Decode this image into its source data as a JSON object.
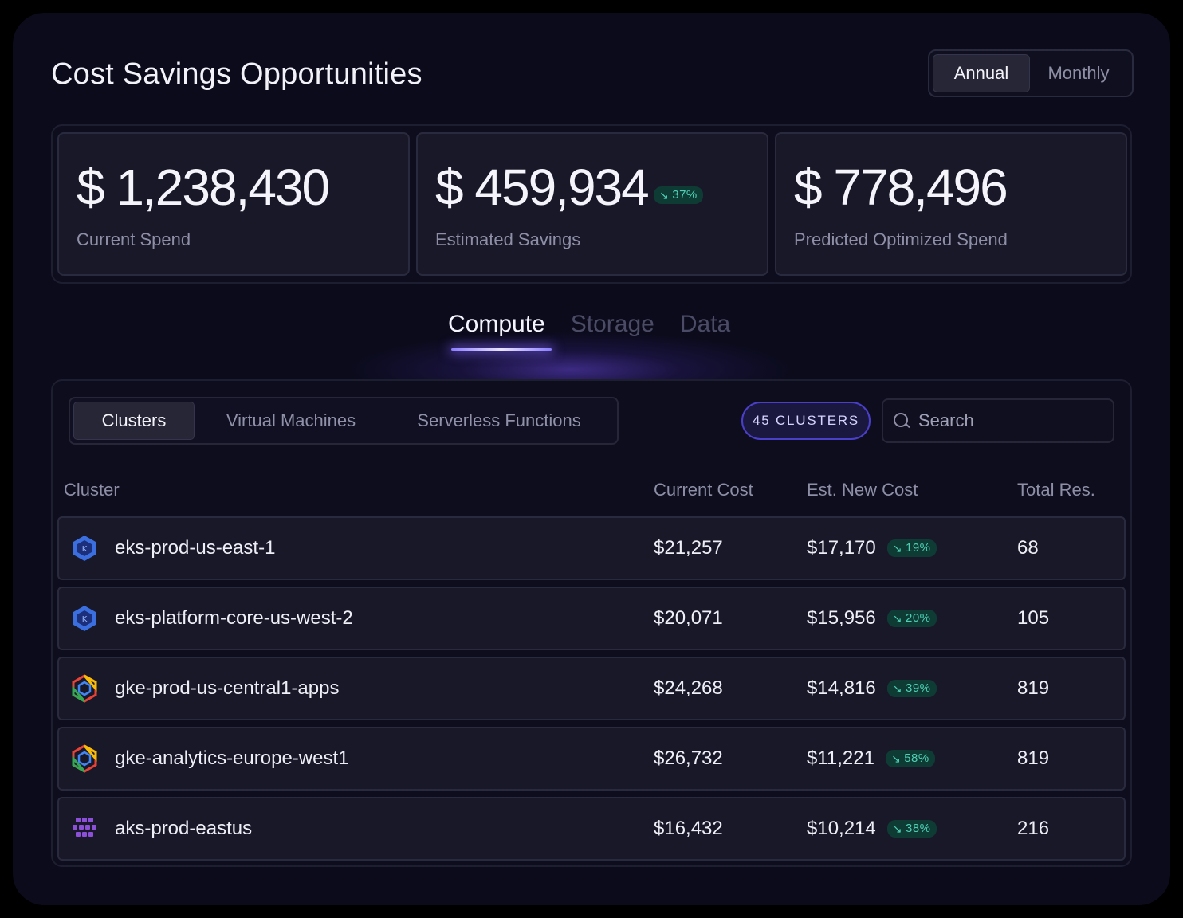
{
  "title": "Cost Savings Opportunities",
  "period_toggle": {
    "options": [
      "Annual",
      "Monthly"
    ],
    "selected": "Annual"
  },
  "stats": [
    {
      "value": "$ 1,238,430",
      "label": "Current Spend"
    },
    {
      "value": "$ 459,934",
      "label": "Estimated Savings",
      "badge": "37%"
    },
    {
      "value": "$ 778,496",
      "label": "Predicted Optimized Spend"
    }
  ],
  "category_tabs": [
    "Compute",
    "Storage",
    "Data"
  ],
  "category_selected": "Compute",
  "resource_tabs": [
    "Clusters",
    "Virtual Machines",
    "Serverless Functions"
  ],
  "resource_selected": "Clusters",
  "count_label": "45 CLUSTERS",
  "search": {
    "placeholder": "Search",
    "value": ""
  },
  "columns": {
    "cluster": "Cluster",
    "current_cost": "Current Cost",
    "est_new_cost": "Est. New Cost",
    "total_res": "Total Res."
  },
  "rows": [
    {
      "icon": "eks-icon",
      "name": "eks-prod-us-east-1",
      "current_cost": "$21,257",
      "est_new_cost": "$17,170",
      "badge": "19%",
      "total_res": "68"
    },
    {
      "icon": "eks-icon",
      "name": "eks-platform-core-us-west-2",
      "current_cost": "$20,071",
      "est_new_cost": "$15,956",
      "badge": "20%",
      "total_res": "105"
    },
    {
      "icon": "gke-icon",
      "name": "gke-prod-us-central1-apps",
      "current_cost": "$24,268",
      "est_new_cost": "$14,816",
      "badge": "39%",
      "total_res": "819"
    },
    {
      "icon": "gke-icon",
      "name": "gke-analytics-europe-west1",
      "current_cost": "$26,732",
      "est_new_cost": "$11,221",
      "badge": "58%",
      "total_res": "819"
    },
    {
      "icon": "aks-icon",
      "name": "aks-prod-eastus",
      "current_cost": "$16,432",
      "est_new_cost": "$10,214",
      "badge": "38%",
      "total_res": "216"
    }
  ],
  "colors": {
    "accent": "#4a3fc9",
    "badge_bg": "#0f3b35",
    "badge_text": "#4fd1b5",
    "panel_bg": "#0b0b1c"
  }
}
